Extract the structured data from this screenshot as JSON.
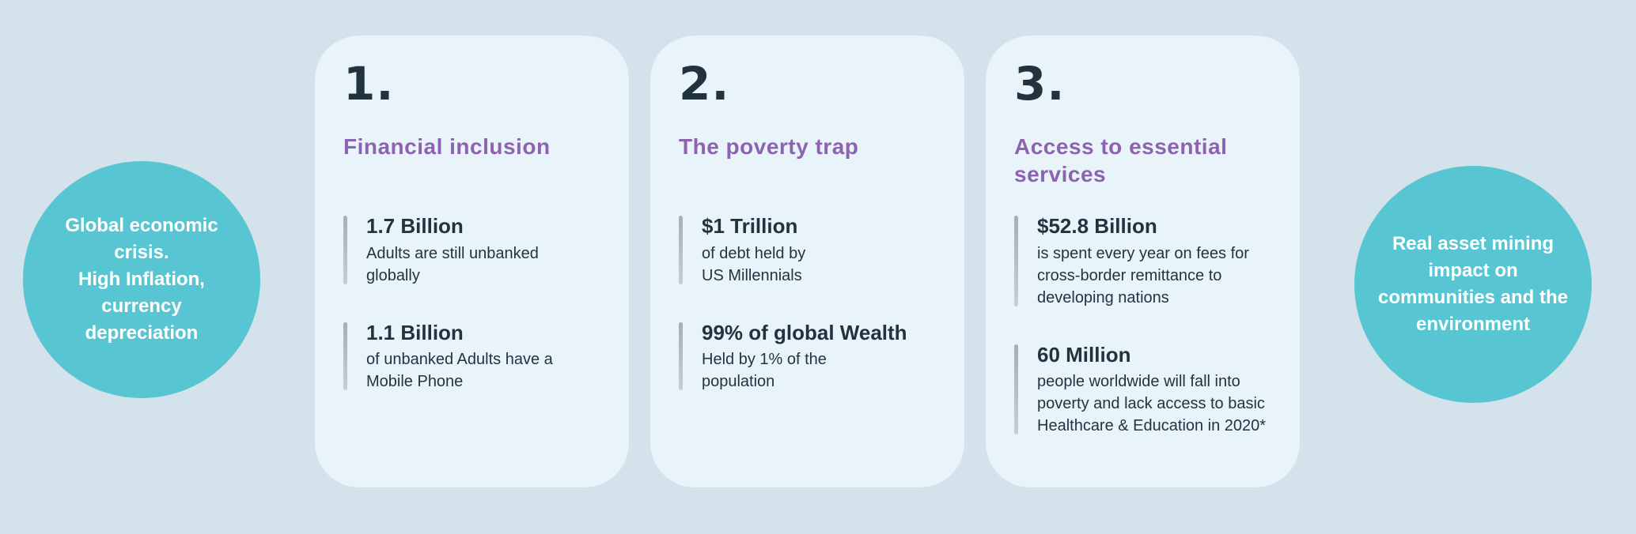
{
  "colors": {
    "page_background": "#d4e2ec",
    "card_background": "#e9f3fa",
    "circle_teal": "#58c6d2",
    "heading_purple": "#8c63ae",
    "text_navy": "#20333f",
    "accent_bar_gray": "#b3bbc2",
    "circle_text_white": "#ffffff"
  },
  "left_circle": {
    "text": "Global economic\ncrisis.\nHigh Inflation,\ncurrency\ndepreciation"
  },
  "right_circle": {
    "text": "Real asset  mining\nimpact on\ncommunities and the\nenvironment"
  },
  "cards": [
    {
      "number": "1.",
      "title": "Financial inclusion",
      "stats": [
        {
          "value": "1.7 Billion",
          "desc": "Adults are still unbanked\nglobally"
        },
        {
          "value": "1.1 Billion",
          "desc": "of unbanked Adults have a\nMobile Phone"
        }
      ]
    },
    {
      "number": "2.",
      "title": "The poverty trap",
      "stats": [
        {
          "value": "$1 Trillion",
          "desc": "of debt held by\nUS Millennials"
        },
        {
          "value": "99% of global Wealth",
          "desc": "Held by 1% of the\npopulation"
        }
      ]
    },
    {
      "number": "3.",
      "title": "Access to essential services",
      "stats": [
        {
          "value": "$52.8 Billion",
          "desc": "is spent every year on fees for\ncross-border remittance to\ndeveloping nations"
        },
        {
          "value": "60 Million",
          "desc": "people worldwide will fall into\npoverty and lack access to basic\nHealthcare & Education in 2020*"
        }
      ]
    }
  ]
}
